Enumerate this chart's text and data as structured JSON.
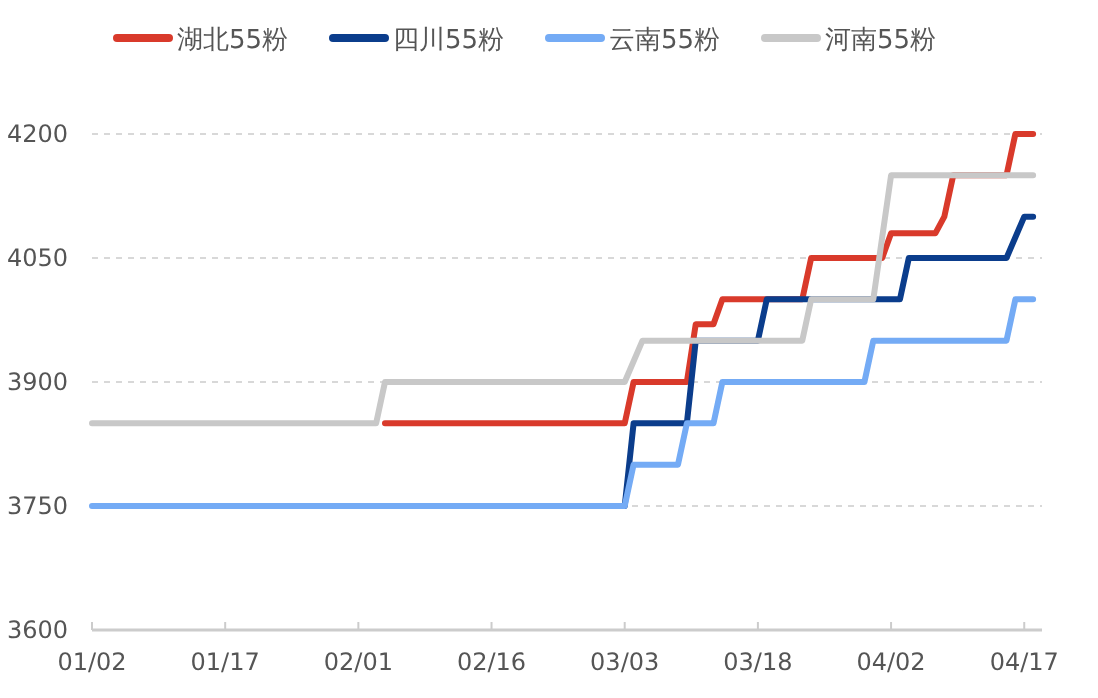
{
  "chart_data": {
    "type": "line",
    "legend": "top",
    "grid": "y",
    "marker": "none",
    "line_style": "solid",
    "xlim": [
      "--01-02",
      "--04-19"
    ],
    "xticks": [
      {
        "value": "--01-02",
        "label": "01/02"
      },
      {
        "value": "--01-17",
        "label": "01/17"
      },
      {
        "value": "--02-01",
        "label": "02/01"
      },
      {
        "value": "--02-16",
        "label": "02/16"
      },
      {
        "value": "--03-03",
        "label": "03/03"
      },
      {
        "value": "--03-18",
        "label": "03/18"
      },
      {
        "value": "--04-02",
        "label": "04/02"
      },
      {
        "value": "--04-17",
        "label": "04/17"
      }
    ],
    "ylim": [
      3600,
      4200
    ],
    "yticks": [
      3600,
      3750,
      3900,
      4050,
      4200
    ],
    "series": [
      {
        "name": "湖北55粉",
        "color": "#d93a2b",
        "x": [
          "--02-04",
          "--03-03",
          "--03-04",
          "--03-10",
          "--03-11",
          "--03-13",
          "--03-14",
          "--03-23",
          "--03-24",
          "--04-01",
          "--04-02",
          "--04-07",
          "--04-08",
          "--04-09",
          "--04-15",
          "--04-16",
          "--04-18"
        ],
        "values": [
          3850,
          3850,
          3900,
          3900,
          3970,
          3970,
          4000,
          4000,
          4050,
          4050,
          4080,
          4080,
          4100,
          4150,
          4150,
          4200,
          4200
        ]
      },
      {
        "name": "四川55粉",
        "color": "#0b3d8c",
        "x": [
          "--03-03",
          "--03-04",
          "--03-10",
          "--03-11",
          "--03-18",
          "--03-19",
          "--04-03",
          "--04-04",
          "--04-15",
          "--04-17",
          "--04-18"
        ],
        "values": [
          3750,
          3850,
          3850,
          3950,
          3950,
          4000,
          4000,
          4050,
          4050,
          4100,
          4100
        ]
      },
      {
        "name": "云南55粉",
        "color": "#74abf5",
        "x": [
          "--01-02",
          "--03-03",
          "--03-04",
          "--03-09",
          "--03-10",
          "--03-13",
          "--03-14",
          "--03-30",
          "--03-31",
          "--04-15",
          "--04-16",
          "--04-18"
        ],
        "values": [
          3750,
          3750,
          3800,
          3800,
          3850,
          3850,
          3900,
          3900,
          3950,
          3950,
          4000,
          4000
        ]
      },
      {
        "name": "河南55粉",
        "color": "#c8c8c8",
        "x": [
          "--01-02",
          "--02-03",
          "--02-04",
          "--03-03",
          "--03-05",
          "--03-23",
          "--03-24",
          "--03-31",
          "--04-02",
          "--04-18"
        ],
        "values": [
          3850,
          3850,
          3900,
          3900,
          3950,
          3950,
          4000,
          4000,
          4150,
          4150
        ]
      }
    ]
  }
}
